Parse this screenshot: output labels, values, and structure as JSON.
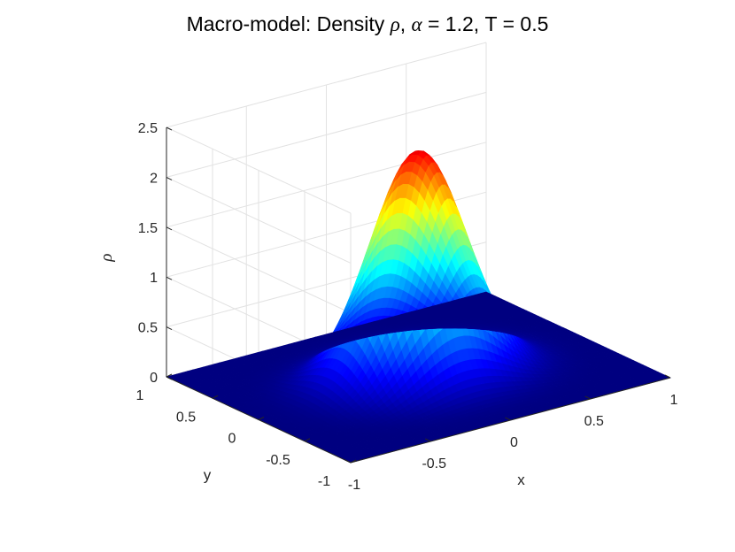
{
  "chart_data": {
    "type": "surface",
    "title": {
      "prefix": "Macro-model: Density ",
      "rho_symbol": "ρ",
      "sep": ", ",
      "alpha_symbol": "α",
      "suffix": " = 1.2, T = 0.5"
    },
    "xlabel": "x",
    "ylabel": "y",
    "zlabel": "ρ",
    "xlim": [
      -1,
      1
    ],
    "ylim": [
      -1,
      1
    ],
    "zlim": [
      0,
      2.5
    ],
    "x_ticks": [
      "-1",
      "-0.5",
      "0",
      "0.5",
      "1"
    ],
    "y_ticks": [
      "-1",
      "-0.5",
      "0",
      "0.5",
      "1"
    ],
    "z_ticks": [
      "0",
      "0.5",
      "1",
      "1.5",
      "2",
      "2.5"
    ],
    "grid": true,
    "colormap": "jet",
    "surface": {
      "function": "gaussian",
      "peak": 2.27,
      "center": [
        0,
        0
      ],
      "sigma": 0.265
    }
  }
}
